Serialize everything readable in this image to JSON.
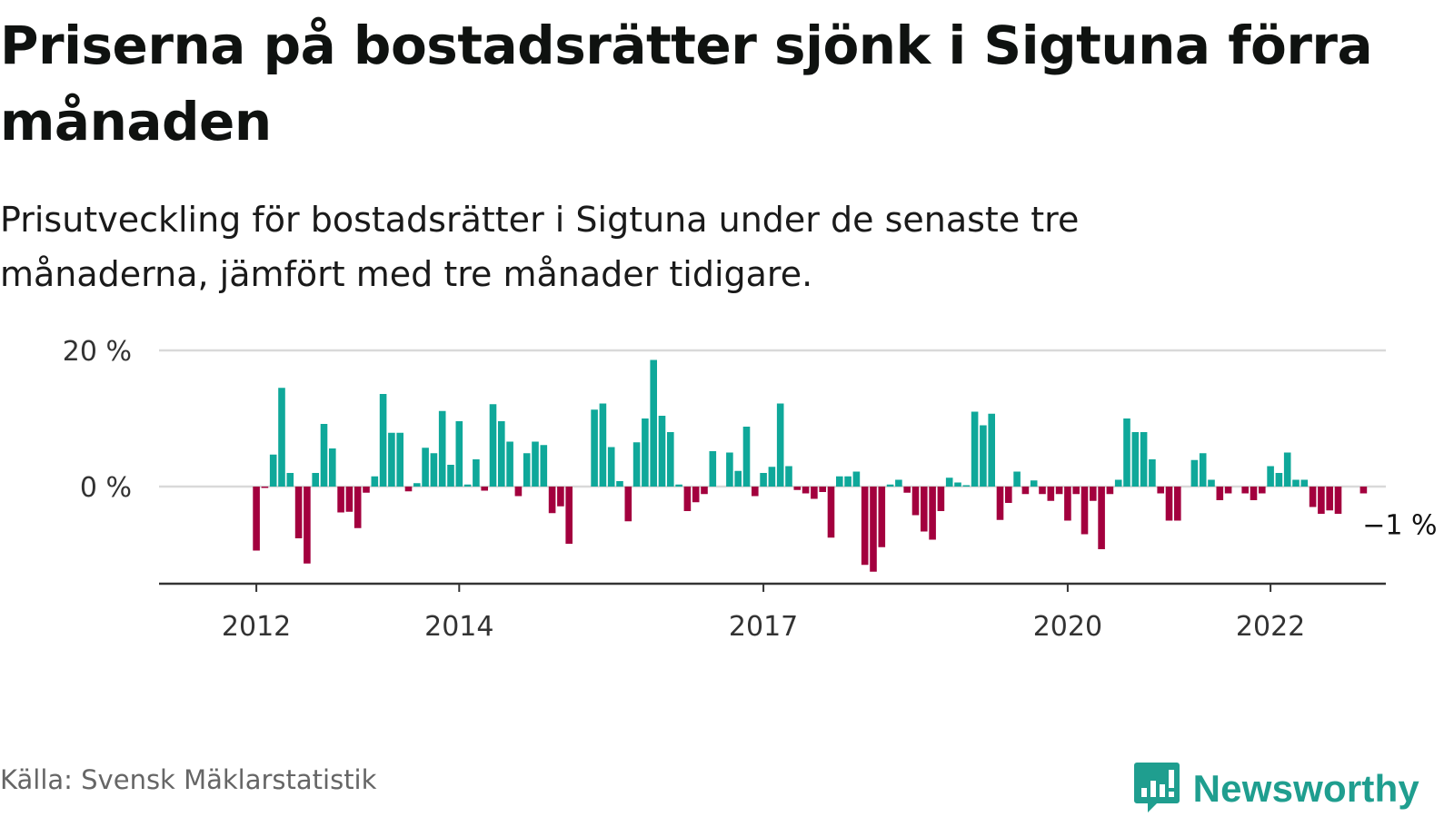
{
  "title": "Priserna på bostadsrätter sjönk i Sigtuna förra månaden",
  "subtitle": "Prisutveckling för bostadsrätter i Sigtuna under de senaste tre månaderna, jämfört med tre månader tidigare.",
  "source": "Källa: Svensk Mäklarstatistik",
  "brand": "Newsworthy",
  "colors": {
    "positive": "#0fa89a",
    "negative": "#a3003e",
    "grid": "#d9d9d9",
    "axis": "#333333",
    "brand": "#1f9e8f"
  },
  "chart_data": {
    "type": "bar",
    "ylim": [
      -14,
      20
    ],
    "yticks": [
      {
        "value": 20,
        "label": "20 %"
      },
      {
        "value": 0,
        "label": "0 %"
      }
    ],
    "xticks": [
      {
        "month": "2012-01",
        "label": "2012"
      },
      {
        "month": "2014-01",
        "label": "2014"
      },
      {
        "month": "2017-01",
        "label": "2017"
      },
      {
        "month": "2020-01",
        "label": "2020"
      },
      {
        "month": "2022-01",
        "label": "2022"
      }
    ],
    "start_month": "2011-02",
    "end_label": "−1 %",
    "values": [
      0,
      0,
      0,
      0,
      0,
      0,
      0,
      0,
      0,
      0,
      0,
      -9.4,
      -0.2,
      4.7,
      14.5,
      2,
      -7.6,
      -11.3,
      2,
      9.2,
      5.6,
      -3.8,
      -3.7,
      -6.1,
      -0.9,
      1.5,
      13.6,
      7.9,
      7.9,
      -0.7,
      0.5,
      5.7,
      4.9,
      11.1,
      3.2,
      9.6,
      0.3,
      4,
      -0.6,
      12.1,
      9.6,
      6.6,
      -1.4,
      4.9,
      6.6,
      6.1,
      -3.9,
      -2.9,
      -8.4,
      0,
      0,
      11.3,
      12.2,
      5.8,
      0.8,
      -5.1,
      6.5,
      10,
      18.6,
      10.4,
      8,
      0.3,
      -3.6,
      -2.3,
      -1.1,
      5.2,
      0,
      5,
      2.3,
      8.8,
      -1.4,
      2,
      2.9,
      12.2,
      3,
      -0.5,
      -1,
      -1.8,
      -0.8,
      -7.5,
      1.5,
      1.5,
      2.2,
      -11.5,
      -12.5,
      -8.9,
      0.3,
      1,
      -0.9,
      -4.2,
      -6.6,
      -7.8,
      -3.6,
      1.3,
      0.6,
      0.2,
      11,
      9,
      10.7,
      -4.9,
      -2.4,
      2.2,
      -1.1,
      0.9,
      -1.1,
      -2.1,
      -1.1,
      -5,
      -1.1,
      -7,
      -2.1,
      -9.2,
      -1.1,
      1,
      10,
      8,
      8,
      4,
      -1,
      -5,
      -5,
      0,
      3.9,
      4.9,
      1,
      -2,
      -1,
      0,
      -1,
      -2,
      -1,
      3,
      2,
      5,
      1,
      1,
      -3,
      -4,
      -3.5,
      -4,
      0,
      0,
      -1
    ]
  }
}
